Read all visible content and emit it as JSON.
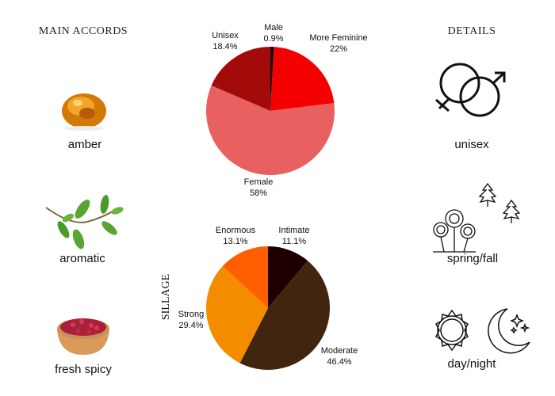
{
  "main_accords": {
    "title": "MAIN ACCORDS",
    "items": [
      {
        "label": "amber",
        "icon": "amber-stone-image"
      },
      {
        "label": "aromatic",
        "icon": "herb-sprig-image"
      },
      {
        "label": "fresh spicy",
        "icon": "pink-pepper-bowl-image"
      }
    ]
  },
  "details": {
    "title": "DETAILS",
    "items": [
      {
        "label": "unisex",
        "icon": "gender-symbols-icon"
      },
      {
        "label": "spring/fall",
        "icon": "flowers-and-maple-leaves-icon"
      },
      {
        "label": "day/night",
        "icon": "sun-and-moon-icon"
      }
    ]
  },
  "chart_data": [
    {
      "type": "pie",
      "title": "",
      "start": "top",
      "direction": "clockwise",
      "slices": [
        {
          "label": "Male",
          "value": 0.9,
          "display": "0.9%",
          "color": "#1a0808"
        },
        {
          "label": "More Feminine",
          "value": 22,
          "display": "22%",
          "color": "#f40000"
        },
        {
          "label": "Female",
          "value": 58,
          "display": "58%",
          "color": "#e96060"
        },
        {
          "label": "Unisex",
          "value": 18.4,
          "display": "18.4%",
          "color": "#a30b0b"
        }
      ]
    },
    {
      "type": "pie",
      "title": "SILLAGE",
      "start": "top",
      "direction": "clockwise",
      "slices": [
        {
          "label": "Intimate",
          "value": 11.1,
          "display": "11.1%",
          "color": "#1e0000"
        },
        {
          "label": "Moderate",
          "value": 46.4,
          "display": "46.4%",
          "color": "#40260f"
        },
        {
          "label": "Strong",
          "value": 29.4,
          "display": "29.4%",
          "color": "#f48c00"
        },
        {
          "label": "Enormous",
          "value": 13.1,
          "display": "13.1%",
          "color": "#ff5f00"
        }
      ]
    }
  ]
}
